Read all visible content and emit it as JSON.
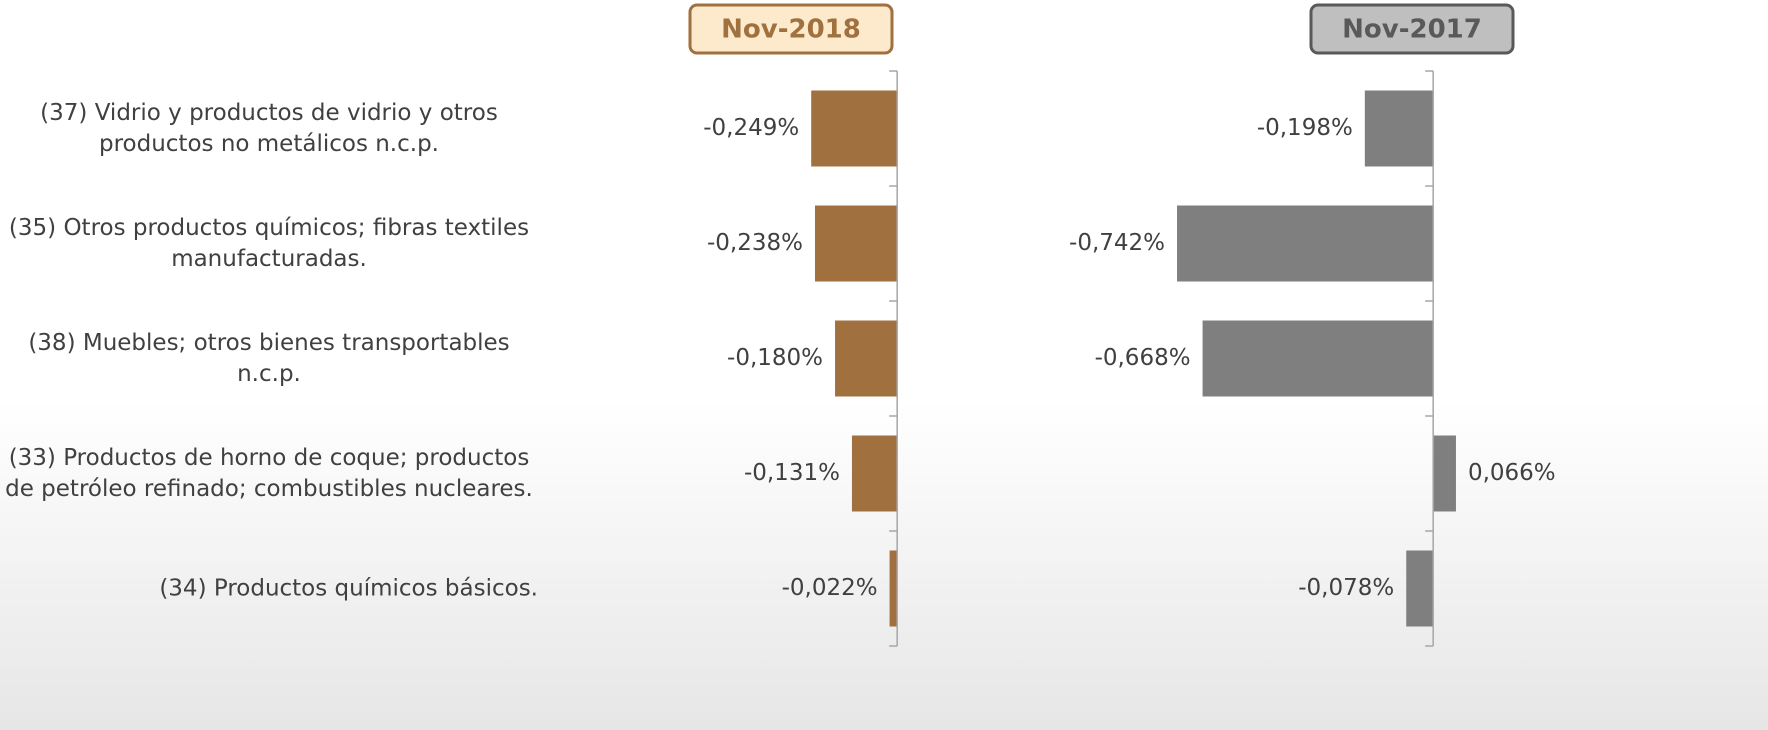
{
  "chart_data": {
    "type": "bar",
    "orientation": "horizontal",
    "categories": [
      "(37) Vidrio y productos de vidrio y otros productos no metálicos n.c.p.",
      "(35) Otros productos químicos; fibras textiles manufacturadas.",
      "(38) Muebles; otros bienes transportables n.c.p.",
      "(33) Productos de horno de coque; productos de petróleo refinado; combustibles nucleares.",
      "(34) Productos químicos básicos."
    ],
    "xlim": [
      -0.8,
      0.35
    ],
    "series": [
      {
        "name": "Nov-2018",
        "color": "#a0703f",
        "values": [
          -0.249,
          -0.238,
          -0.18,
          -0.131,
          -0.022
        ],
        "value_labels": [
          "-0,249%",
          "-0,238%",
          "-0,180%",
          "-0,131%",
          "-0,022%"
        ]
      },
      {
        "name": "Nov-2017",
        "color": "#7f7f7f",
        "values": [
          -0.198,
          -0.742,
          -0.668,
          0.066,
          -0.078
        ],
        "value_labels": [
          "-0,198%",
          "-0,742%",
          "-0,668%",
          "0,066%",
          "-0,078%"
        ]
      }
    ]
  }
}
